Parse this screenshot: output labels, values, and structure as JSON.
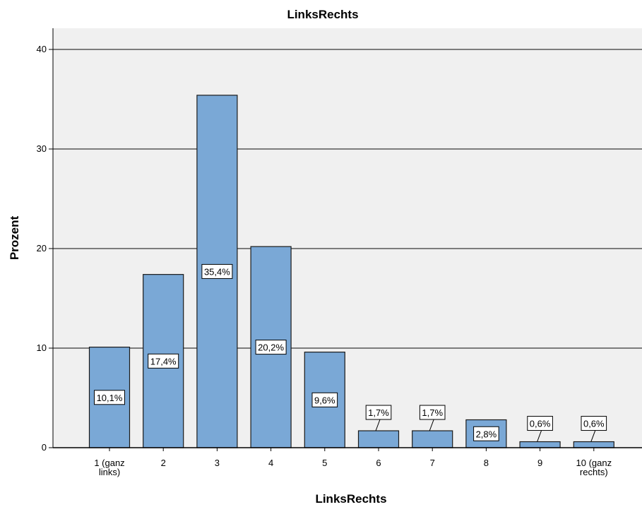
{
  "chart_data": {
    "type": "bar",
    "title": "LinksRechts",
    "xlabel": "LinksRechts",
    "ylabel": "Prozent",
    "ylim": [
      0,
      40
    ],
    "yticks": [
      0,
      10,
      20,
      30,
      40
    ],
    "grid": true,
    "categories": [
      [
        "1 (ganz",
        "links)"
      ],
      [
        "2"
      ],
      [
        "3"
      ],
      [
        "4"
      ],
      [
        "5"
      ],
      [
        "6"
      ],
      [
        "7"
      ],
      [
        "8"
      ],
      [
        "9"
      ],
      [
        "10 (ganz",
        "rechts)"
      ]
    ],
    "values": [
      10.1,
      17.4,
      35.4,
      20.2,
      9.6,
      1.7,
      1.7,
      2.8,
      0.6,
      0.6
    ],
    "data_labels": [
      "10,1%",
      "17,4%",
      "35,4%",
      "20,2%",
      "9,6%",
      "1,7%",
      "1,7%",
      "2,8%",
      "0,6%",
      "0,6%"
    ],
    "colors": {
      "bar_fill": "#7aa8d6",
      "bar_stroke": "#1a1a1a",
      "plot_background": "#f0f0f0",
      "gridline": "#555555"
    }
  }
}
